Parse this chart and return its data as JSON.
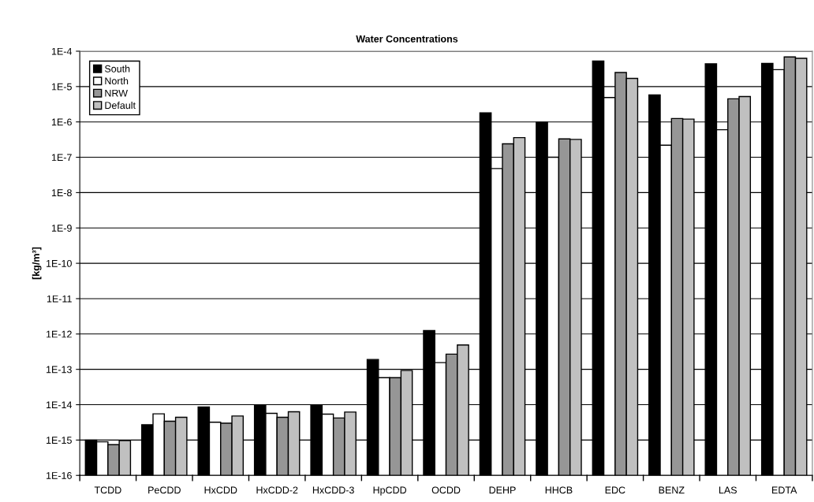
{
  "chart_data": {
    "type": "bar",
    "title": "Water Concentrations",
    "ylabel": "[kg/m³]",
    "categories": [
      "TCDD",
      "PeCDD",
      "HxCDD",
      "HxCDD-2",
      "HxCDD-3",
      "HpCDD",
      "OCDD",
      "DEHP",
      "HHCB",
      "EDC",
      "BENZ",
      "LAS",
      "EDTA"
    ],
    "series": [
      {
        "name": "South",
        "color": "#000000",
        "values": [
          1e-15,
          2.7e-15,
          8.6e-15,
          9.7e-15,
          9.4e-15,
          1.9e-13,
          1.25e-12,
          1.8e-06,
          9.7e-07,
          5.3e-05,
          5.8e-06,
          4.4e-05,
          4.5e-05
        ]
      },
      {
        "name": "North",
        "color": "#ffffff",
        "values": [
          8.9e-16,
          5.5e-15,
          3.2e-15,
          5.7e-15,
          5.4e-15,
          5.8e-14,
          1.55e-13,
          4.8e-08,
          1e-07,
          4.9e-06,
          2.2e-07,
          6e-07,
          3e-05
        ]
      },
      {
        "name": "NRW",
        "color": "#969696",
        "values": [
          7.4e-16,
          3.4e-15,
          3e-15,
          4.4e-15,
          4.2e-15,
          5.8e-14,
          2.7e-13,
          2.4e-07,
          3.3e-07,
          2.5e-05,
          1.25e-06,
          4.5e-06,
          6.9e-05
        ]
      },
      {
        "name": "Default",
        "color": "#c0c0c0",
        "values": [
          9.7e-16,
          4.4e-15,
          4.8e-15,
          6.3e-15,
          6.2e-15,
          9.3e-14,
          4.9e-13,
          3.6e-07,
          3.2e-07,
          1.7e-05,
          1.2e-06,
          5.2e-06,
          6.3e-05
        ]
      }
    ],
    "log": "y",
    "ylim": [
      1e-16,
      0.0001
    ],
    "yticks": [
      {
        "value": 1e-16,
        "label": "1E-16"
      },
      {
        "value": 1e-15,
        "label": "1E-15"
      },
      {
        "value": 1e-14,
        "label": "1E-14"
      },
      {
        "value": 1e-13,
        "label": "1E-13"
      },
      {
        "value": 1e-12,
        "label": "1E-12"
      },
      {
        "value": 1e-11,
        "label": "1E-11"
      },
      {
        "value": 1e-10,
        "label": "1E-10"
      },
      {
        "value": 1e-09,
        "label": "1E-9"
      },
      {
        "value": 1e-08,
        "label": "1E-8"
      },
      {
        "value": 1e-07,
        "label": "1E-7"
      },
      {
        "value": 1e-06,
        "label": "1E-6"
      },
      {
        "value": 1e-05,
        "label": "1E-5"
      },
      {
        "value": 0.0001,
        "label": "1E-4"
      }
    ],
    "grid": "y",
    "legend": "top left"
  }
}
